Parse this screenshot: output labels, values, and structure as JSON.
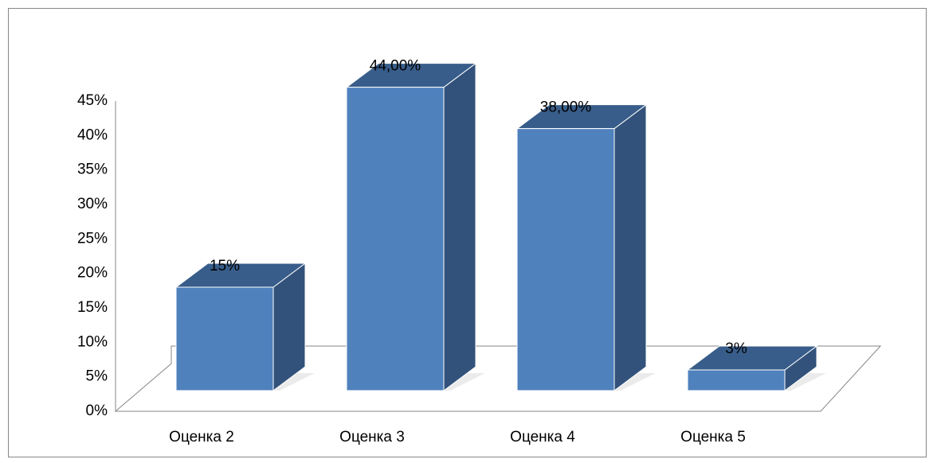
{
  "chart_data": {
    "type": "bar3d",
    "categories": [
      "Оценка 2",
      "Оценка 3",
      "Оценка 4",
      "Оценка 5"
    ],
    "values": [
      15,
      44,
      38,
      3
    ],
    "value_labels": [
      "15%",
      "44,00%",
      "38,00%",
      "3%"
    ],
    "color": "#4f81bd",
    "ylim": [
      0,
      45
    ],
    "yticks": [
      {
        "value": 0,
        "label": "0%"
      },
      {
        "value": 5,
        "label": "5%"
      },
      {
        "value": 10,
        "label": "10%"
      },
      {
        "value": 15,
        "label": "15%"
      },
      {
        "value": 20,
        "label": "20%"
      },
      {
        "value": 25,
        "label": "25%"
      },
      {
        "value": 30,
        "label": "30%"
      },
      {
        "value": 35,
        "label": "35%"
      },
      {
        "value": 40,
        "label": "40%"
      },
      {
        "value": 45,
        "label": "45%"
      }
    ]
  }
}
